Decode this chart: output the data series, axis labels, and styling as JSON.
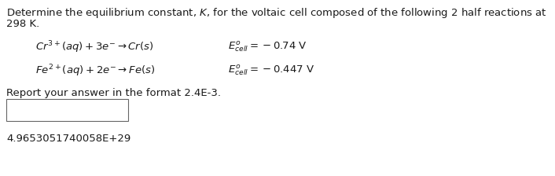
{
  "title_line1": "Determine the equilibrium constant, $K$, for the voltaic cell composed of the following 2 half reactions at",
  "title_line2": "298 K.",
  "reaction1": "$Cr^{3+}(aq) + 3e^{-} \\rightarrow Cr(s)$",
  "ecell1": "$E^{o}_{cell} = -0.74$ V",
  "reaction2": "$Fe^{2+}(aq) + 2e^{-} \\rightarrow Fe(s)$",
  "ecell2": "$E^{o}_{cell} = -0.447$ V",
  "report_line": "Report your answer in the format 2.4E-3.",
  "answer": "4.9653051740058E+29",
  "bg_color": "#ffffff",
  "text_color": "#1a1a1a",
  "font_size": 9.5,
  "fig_width": 7.06,
  "fig_height": 2.24,
  "dpi": 100
}
